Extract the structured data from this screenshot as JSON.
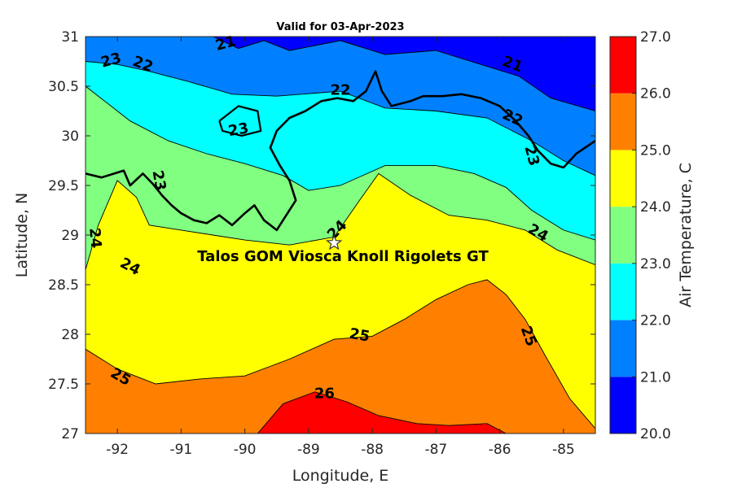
{
  "chart_data": {
    "type": "heatmap",
    "subtype": "filled-contour map",
    "title": "Valid for 03-Apr-2023",
    "xlabel": "Longitude, E",
    "ylabel": "Latitude, N",
    "xlim": [
      -92.5,
      -84.5
    ],
    "ylim": [
      27,
      31
    ],
    "xticks": [
      -92,
      -91,
      -90,
      -89,
      -88,
      -87,
      -86,
      -85
    ],
    "xtick_labels": [
      "-92",
      "-91",
      "-90",
      "-89",
      "-88",
      "-87",
      "-86",
      "-85"
    ],
    "yticks": [
      27,
      27.5,
      28,
      28.5,
      29,
      29.5,
      30,
      30.5,
      31
    ],
    "ytick_labels": [
      "27",
      "27.5",
      "28",
      "28.5",
      "29",
      "29.5",
      "30",
      "30.5",
      "31"
    ],
    "colorbar": {
      "label": "Air Temperature, C",
      "ticks": [
        "20.0",
        "21.0",
        "22.0",
        "23.0",
        "24.0",
        "25.0",
        "26.0",
        "27.0"
      ],
      "levels": [
        20,
        21,
        22,
        23,
        24,
        25,
        26,
        27
      ],
      "colors": [
        "#0000ff",
        "#0080ff",
        "#00ffff",
        "#80ff80",
        "#ffff00",
        "#ff8000",
        "#ff0000"
      ]
    },
    "contour_lines": [
      {
        "value": 21,
        "points": [
          [
            -90.5,
            31.0
          ],
          [
            -90.1,
            30.88
          ],
          [
            -89.7,
            30.96
          ],
          [
            -89.3,
            30.86
          ],
          [
            -88.5,
            30.96
          ],
          [
            -87.8,
            30.82
          ],
          [
            -87.0,
            30.86
          ],
          [
            -86.3,
            30.72
          ],
          [
            -85.7,
            30.6
          ],
          [
            -85.2,
            30.38
          ],
          [
            -84.5,
            30.25
          ]
        ]
      },
      {
        "value": 22,
        "points": [
          [
            -92.5,
            30.75
          ],
          [
            -92.0,
            30.72
          ],
          [
            -91.5,
            30.65
          ],
          [
            -90.9,
            30.55
          ],
          [
            -90.2,
            30.42
          ],
          [
            -89.5,
            30.4
          ],
          [
            -88.5,
            30.45
          ],
          [
            -87.8,
            30.28
          ],
          [
            -87.0,
            30.25
          ],
          [
            -86.2,
            30.18
          ],
          [
            -85.5,
            29.95
          ],
          [
            -85.0,
            29.75
          ],
          [
            -84.5,
            29.6
          ]
        ]
      },
      {
        "value": 23,
        "points": [
          [
            -92.5,
            30.5
          ],
          [
            -92.2,
            30.35
          ],
          [
            -91.8,
            30.15
          ],
          [
            -91.2,
            29.95
          ],
          [
            -90.6,
            29.82
          ],
          [
            -90.0,
            29.72
          ],
          [
            -89.4,
            29.6
          ],
          [
            -89.0,
            29.45
          ],
          [
            -88.5,
            29.5
          ],
          [
            -87.8,
            29.7
          ],
          [
            -87.0,
            29.7
          ],
          [
            -86.4,
            29.62
          ],
          [
            -85.9,
            29.48
          ],
          [
            -85.5,
            29.25
          ],
          [
            -85.0,
            29.05
          ],
          [
            -84.5,
            28.95
          ]
        ]
      },
      {
        "value": 24,
        "points": [
          [
            -92.5,
            28.65
          ],
          [
            -92.3,
            29.1
          ],
          [
            -92.0,
            29.55
          ],
          [
            -91.7,
            29.38
          ],
          [
            -91.5,
            29.1
          ],
          [
            -91.0,
            29.05
          ],
          [
            -90.5,
            29.0
          ],
          [
            -90.0,
            28.95
          ],
          [
            -89.3,
            28.9
          ],
          [
            -88.6,
            28.98
          ],
          [
            -88.2,
            29.35
          ],
          [
            -87.9,
            29.62
          ],
          [
            -87.4,
            29.4
          ],
          [
            -86.8,
            29.2
          ],
          [
            -86.2,
            29.15
          ],
          [
            -85.6,
            29.05
          ],
          [
            -85.1,
            28.85
          ],
          [
            -84.5,
            28.7
          ]
        ]
      },
      {
        "value": 25,
        "points": [
          [
            -92.5,
            27.85
          ],
          [
            -92.0,
            27.65
          ],
          [
            -91.4,
            27.5
          ],
          [
            -90.7,
            27.55
          ],
          [
            -90.0,
            27.58
          ],
          [
            -89.3,
            27.75
          ],
          [
            -88.6,
            27.95
          ],
          [
            -88.0,
            27.98
          ],
          [
            -87.5,
            28.15
          ],
          [
            -87.0,
            28.35
          ],
          [
            -86.5,
            28.5
          ],
          [
            -86.2,
            28.55
          ],
          [
            -85.9,
            28.4
          ],
          [
            -85.6,
            28.15
          ],
          [
            -85.3,
            27.8
          ],
          [
            -84.9,
            27.35
          ],
          [
            -84.5,
            27.05
          ]
        ]
      },
      {
        "value": 26,
        "points": [
          [
            -89.8,
            27.0
          ],
          [
            -89.4,
            27.3
          ],
          [
            -88.9,
            27.42
          ],
          [
            -88.4,
            27.32
          ],
          [
            -87.9,
            27.18
          ],
          [
            -87.3,
            27.1
          ],
          [
            -86.8,
            27.08
          ],
          [
            -86.2,
            27.1
          ],
          [
            -85.9,
            27.0
          ]
        ]
      }
    ],
    "contour_labels": [
      {
        "text": "21",
        "lon": -90.3,
        "lat": 30.93,
        "angle": -15
      },
      {
        "text": "21",
        "lon": -85.8,
        "lat": 30.72,
        "angle": 20
      },
      {
        "text": "22",
        "lon": -91.6,
        "lat": 30.72,
        "angle": 20
      },
      {
        "text": "22",
        "lon": -88.5,
        "lat": 30.46,
        "angle": 0
      },
      {
        "text": "22",
        "lon": -85.8,
        "lat": 30.18,
        "angle": 25
      },
      {
        "text": "23",
        "lon": -92.1,
        "lat": 30.76,
        "angle": -15
      },
      {
        "text": "23",
        "lon": -90.1,
        "lat": 30.06,
        "angle": -10
      },
      {
        "text": "23",
        "lon": -91.35,
        "lat": 29.55,
        "angle": 80
      },
      {
        "text": "23",
        "lon": -85.5,
        "lat": 29.8,
        "angle": 75
      },
      {
        "text": "24",
        "lon": -92.35,
        "lat": 28.97,
        "angle": 85
      },
      {
        "text": "24",
        "lon": -91.8,
        "lat": 28.68,
        "angle": 28
      },
      {
        "text": "24",
        "lon": -88.55,
        "lat": 29.05,
        "angle": -45
      },
      {
        "text": "24",
        "lon": -85.4,
        "lat": 29.02,
        "angle": 30
      },
      {
        "text": "25",
        "lon": -91.95,
        "lat": 27.57,
        "angle": 30
      },
      {
        "text": "25",
        "lon": -88.2,
        "lat": 27.99,
        "angle": 10
      },
      {
        "text": "25",
        "lon": -85.55,
        "lat": 27.98,
        "angle": 70
      },
      {
        "text": "26",
        "lon": -88.75,
        "lat": 27.4,
        "angle": 0
      }
    ],
    "station": {
      "name": "Talos GOM Viosca Knoll Rigolets GT",
      "lon": -88.6,
      "lat": 28.92
    },
    "coastline_color": "#000000"
  }
}
